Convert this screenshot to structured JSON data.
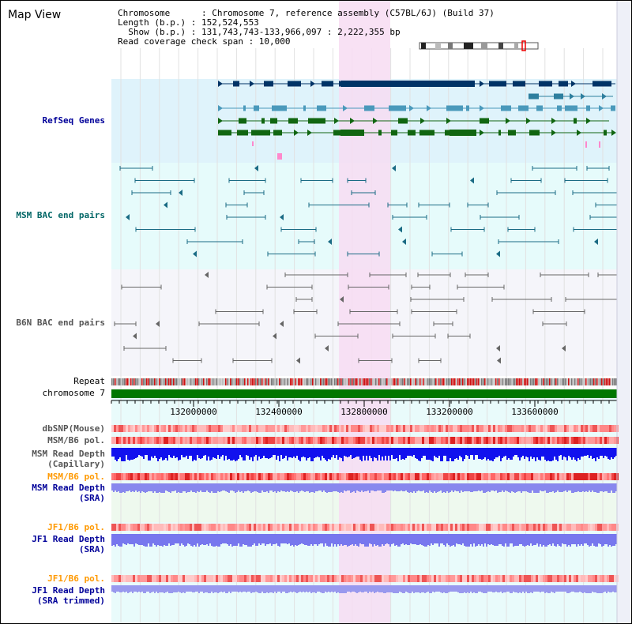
{
  "view_title": "Map View",
  "info": {
    "chromosome": "Chromosome      : Chromosome 7, reference assembly (C57BL/6J) (Build 37)",
    "length": "Length (b.p.) : 152,524,553",
    "show": "  Show (b.p.) : 131,743,743-133,966,097 : 2,222,355 bp",
    "coverage": "Read coverage check span : 10,000"
  },
  "tracks": {
    "refseq": "RefSeq Genes",
    "msm_bac": "MSM BAC end pairs",
    "b6n_bac": "B6N BAC end pairs",
    "repeat": "Repeat",
    "chromosome": "chromosome 7",
    "dbsnp": "dbSNP(Mouse)",
    "msm_b6_pol_1": "MSM/B6 pol.",
    "msm_depth_cap_1": "MSM Read Depth",
    "msm_depth_cap_2": "(Capillary)",
    "msm_b6_pol_2": "MSM/B6 pol.",
    "msm_depth_sra_1": "MSM Read Depth",
    "msm_depth_sra_2": "(SRA)",
    "jf1_b6_pol_1": "JF1/B6 pol.",
    "jf1_depth_sra_1": "JF1 Read Depth",
    "jf1_depth_sra_2": "(SRA)",
    "jf1_b6_pol_2": "JF1/B6 pol.",
    "jf1_depth_trim_1": "JF1 Read Depth",
    "jf1_depth_trim_2": "(SRA trimmed)"
  },
  "ruler": {
    "ticks": [
      "132000000",
      "132400000",
      "132800000",
      "133200000",
      "133600000"
    ]
  },
  "colors": {
    "refseq_bg": "#dff3fb",
    "msm_bac_bg": "#e6fbfb",
    "b6n_bg": "#f5f5fa",
    "highlight": "#f7dcf2",
    "blue_label": "#000099",
    "teal_label": "#006666",
    "orange_label": "#ff9900",
    "gray_label": "#555555",
    "chrom_bar": "#007700"
  }
}
